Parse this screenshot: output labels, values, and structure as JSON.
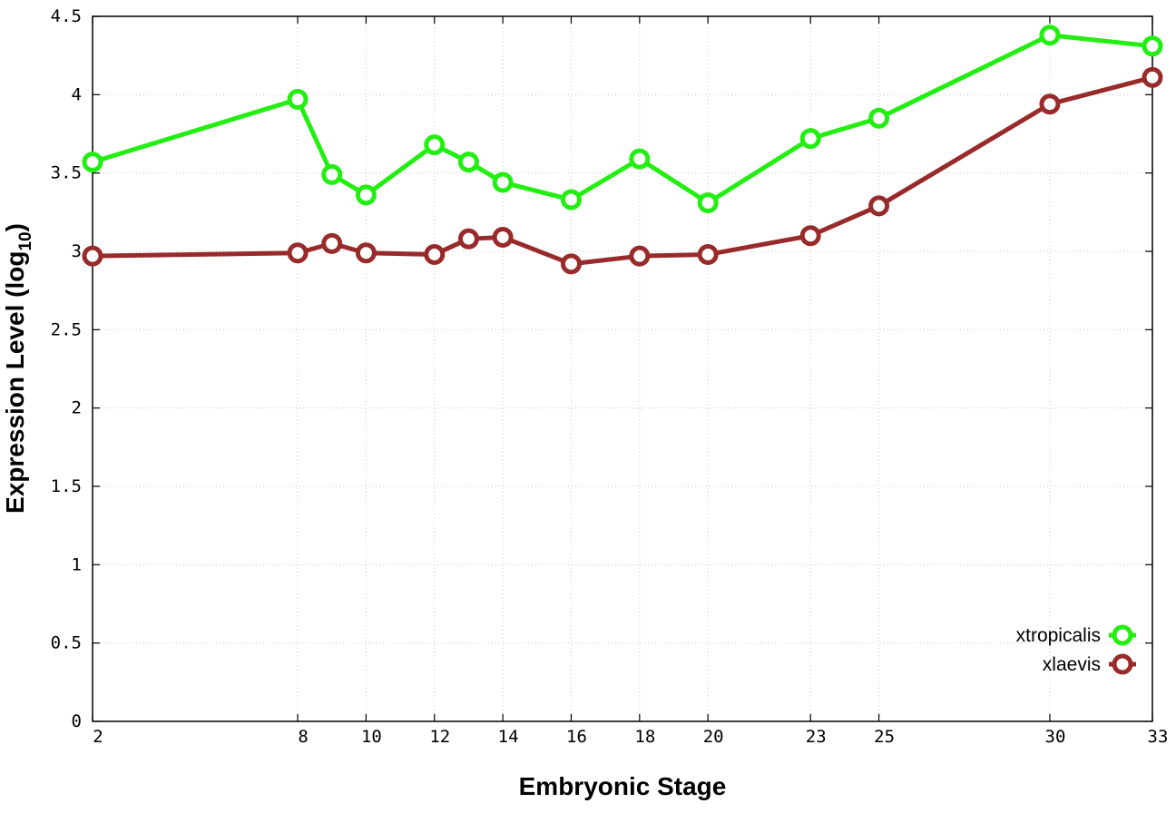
{
  "chart_data": {
    "type": "line",
    "xlabel": "Embryonic Stage",
    "ylabel_main": "Expression Level (log",
    "ylabel_sub": "10",
    "ylabel_close": ")",
    "ylim": [
      0,
      4.5
    ],
    "y_ticks": [
      "0",
      "0.5",
      "1",
      "1.5",
      "2",
      "2.5",
      "3",
      "3.5",
      "4",
      "4.5"
    ],
    "categories": [
      "2",
      "8",
      "9",
      "10",
      "12",
      "13",
      "14",
      "16",
      "18",
      "20",
      "23",
      "25",
      "30",
      "33"
    ],
    "x_tick_labels": [
      "2",
      "8",
      "10",
      "12",
      "14",
      "16",
      "18",
      "20",
      "23",
      "25",
      "30",
      "33"
    ],
    "grid": true,
    "legend_position": "bottom-right",
    "series": [
      {
        "name": "xtropicalis",
        "color": "#22ee11",
        "values": [
          3.57,
          3.97,
          3.49,
          3.36,
          3.68,
          3.57,
          3.44,
          3.33,
          3.59,
          3.31,
          3.72,
          3.85,
          4.38,
          4.31
        ]
      },
      {
        "name": "xlaevis",
        "color": "#992a2a",
        "values": [
          2.97,
          2.99,
          3.05,
          2.99,
          2.98,
          3.08,
          3.09,
          2.92,
          2.97,
          2.98,
          3.1,
          3.29,
          3.94,
          4.11
        ]
      }
    ]
  }
}
